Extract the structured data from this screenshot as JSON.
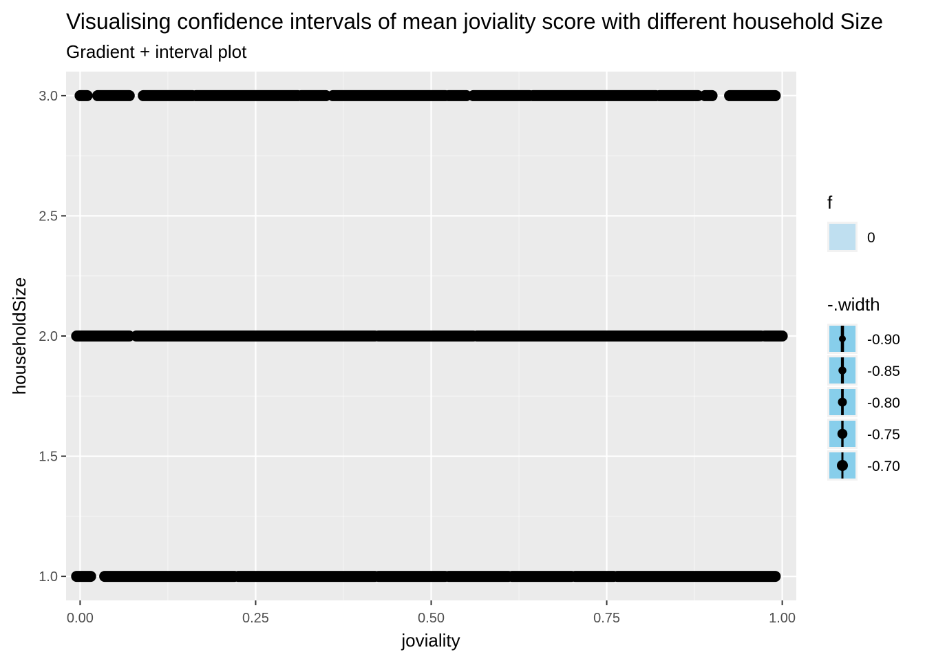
{
  "chart_data": {
    "type": "scatter",
    "title": "Visualising confidence intervals of mean joviality score with different household Size",
    "subtitle": "Gradient + interval plot",
    "xlabel": "joviality",
    "ylabel": "householdSize",
    "xlim": [
      -0.02,
      1.02
    ],
    "ylim": [
      0.9,
      3.1
    ],
    "x_ticks": [
      0.0,
      0.25,
      0.5,
      0.75,
      1.0
    ],
    "x_tick_labels": [
      "0.00",
      "0.25",
      "0.50",
      "0.75",
      "1.00"
    ],
    "y_ticks": [
      1.0,
      1.5,
      2.0,
      2.5,
      3.0
    ],
    "y_tick_labels": [
      "1.0",
      "1.5",
      "2.0",
      "2.5",
      "3.0"
    ],
    "grid": true,
    "legend_position": "right",
    "series": [
      {
        "y": 3.0,
        "segments": [
          [
            0.0,
            0.01
          ],
          [
            0.025,
            0.07
          ],
          [
            0.09,
            0.16
          ],
          [
            0.165,
            0.31
          ],
          [
            0.315,
            0.35
          ],
          [
            0.36,
            0.52
          ],
          [
            0.525,
            0.55
          ],
          [
            0.56,
            0.64
          ],
          [
            0.645,
            0.82
          ],
          [
            0.825,
            0.88
          ],
          [
            0.89,
            0.9
          ],
          [
            0.925,
            0.99
          ]
        ]
      },
      {
        "y": 2.0,
        "segments": [
          [
            -0.005,
            0.07
          ],
          [
            0.08,
            0.42
          ],
          [
            0.425,
            0.56
          ],
          [
            0.565,
            0.97
          ],
          [
            0.975,
            1.0
          ]
        ]
      },
      {
        "y": 1.0,
        "segments": [
          [
            -0.005,
            0.015
          ],
          [
            0.035,
            0.22
          ],
          [
            0.225,
            0.42
          ],
          [
            0.425,
            0.52
          ],
          [
            0.525,
            0.61
          ],
          [
            0.615,
            0.7
          ],
          [
            0.705,
            0.76
          ],
          [
            0.765,
            0.99
          ]
        ]
      }
    ],
    "legends": [
      {
        "title": "f",
        "entries": [
          {
            "label": "0",
            "color": "#bfdff0"
          }
        ]
      },
      {
        "title": "-.width",
        "entries": [
          {
            "label": "-0.90",
            "level": 0.9
          },
          {
            "label": "-0.85",
            "level": 0.85
          },
          {
            "label": "-0.80",
            "level": 0.8
          },
          {
            "label": "-0.75",
            "level": 0.75
          },
          {
            "label": "-0.70",
            "level": 0.7
          }
        ]
      }
    ],
    "colors": {
      "panel": "#ebebeb",
      "grid_major": "#ffffff",
      "point": "#000000",
      "interval_key": "#87ceeb"
    }
  }
}
